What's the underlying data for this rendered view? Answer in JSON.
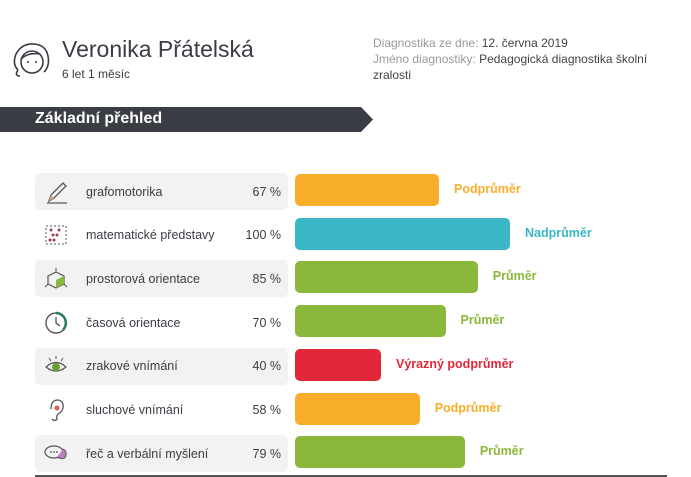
{
  "child": {
    "name": "Veronika Přátelská",
    "age": "6 let 1 měsíc"
  },
  "meta": {
    "date_label": "Diagnostika ze dne:",
    "date_value": "12. června 2019",
    "diag_label": "Jméno diagnostiky:",
    "diag_value": "Pedagogická diagnostika školní zralosti"
  },
  "section_title": "Základní přehled",
  "colors": {
    "orange": "#f9ae2b",
    "teal": "#3ab6c6",
    "green": "#8ab83a",
    "red": "#e0283a",
    "dark": "#3a3d44"
  },
  "rows": [
    {
      "icon": "pencil-icon",
      "label": "grafomotorika",
      "value": 67,
      "pct": "67 %",
      "rating": "Podprůměr",
      "color": "orange"
    },
    {
      "icon": "abacus-icon",
      "label": "matematické představy",
      "value": 100,
      "pct": "100 %",
      "rating": "Nadprůměr",
      "color": "teal"
    },
    {
      "icon": "cube-icon",
      "label": "prostorová orientace",
      "value": 85,
      "pct": "85 %",
      "rating": "Průměr",
      "color": "green"
    },
    {
      "icon": "clock-icon",
      "label": "časová orientace",
      "value": 70,
      "pct": "70 %",
      "rating": "Průměr",
      "color": "green"
    },
    {
      "icon": "eye-icon",
      "label": "zrakové vnímání",
      "value": 40,
      "pct": "40 %",
      "rating": "Výrazný podprůměr",
      "color": "red"
    },
    {
      "icon": "ear-icon",
      "label": "sluchové vnímání",
      "value": 58,
      "pct": "58 %",
      "rating": "Podprůměr",
      "color": "orange"
    },
    {
      "icon": "speech-bubbles-icon",
      "label": "řeč a verbální myšlení",
      "value": 79,
      "pct": "79 %",
      "rating": "Průměr",
      "color": "green"
    }
  ]
}
